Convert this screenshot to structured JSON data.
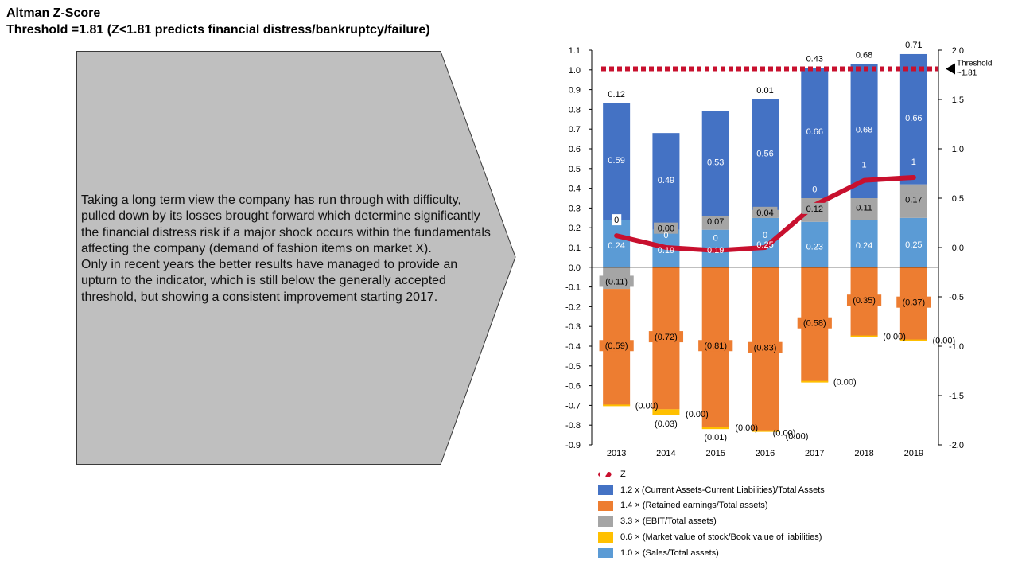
{
  "header": {
    "title": "Altman Z-Score",
    "subtitle": "Threshold =1.81 (Z<1.81 predicts financial distress/bankruptcy/failure)"
  },
  "commentary": {
    "paragraph1": "Taking a long term view the company has run through with difficulty, pulled down by its losses brought forward which determine significantly the financial distress risk if a major shock occurs within the fundamentals affecting the company (demand of fashion items on market X).",
    "paragraph2": "Only in recent years the better results have managed to provide an upturn to the indicator, which is still below the generally accepted threshold, but showing a consistent improvement starting 2017."
  },
  "colors": {
    "blue": "#4472c4",
    "orange": "#ed7d31",
    "gray": "#a5a5a5",
    "yellow": "#ffc000",
    "lightblue": "#5b9bd5",
    "z_line": "#c8102e",
    "arrow_fill": "#bfbfbf"
  },
  "chart_data": {
    "type": "bar",
    "stacked": true,
    "categories": [
      "2013",
      "2014",
      "2015",
      "2016",
      "2017",
      "2018",
      "2019"
    ],
    "left_axis": {
      "min": -0.9,
      "max": 1.1,
      "step": 0.1,
      "ticks": [
        "1.1",
        "1.0",
        "0.9",
        "0.8",
        "0.7",
        "0.6",
        "0.5",
        "0.4",
        "0.3",
        "0.2",
        "0.1",
        "0.0",
        "-0.1",
        "-0.2",
        "-0.3",
        "-0.4",
        "-0.5",
        "-0.6",
        "-0.7",
        "-0.8",
        "-0.9"
      ]
    },
    "right_axis": {
      "min": -2.0,
      "max": 2.0,
      "step": 0.5,
      "ticks": [
        "2.0",
        "1.5",
        "1.0",
        "0.5",
        "0.0",
        "-0.5",
        "-1.0",
        "-1.5",
        "-2.0"
      ]
    },
    "threshold": {
      "value": 1.81,
      "label_line1": "Threshold",
      "label_line2": "~1.81"
    },
    "series": [
      {
        "name": "1.0 × (Sales/Total assets)",
        "color_key": "lightblue",
        "values": [
          0.24,
          0.19,
          0.19,
          0.25,
          0.23,
          0.24,
          0.25
        ],
        "labels": [
          "0.24",
          "0.19",
          "0.19",
          "0.25",
          "0.23",
          "0.24",
          "0.25"
        ]
      },
      {
        "name": "3.3 × (EBIT/Total assets)",
        "color_key": "gray",
        "values": [
          -0.11,
          0.0,
          0.07,
          0.04,
          0.12,
          0.11,
          0.17
        ],
        "labels": [
          "(0.11)",
          "0.00",
          "0.07",
          "0.04",
          "0.12",
          "0.11",
          "0.17"
        ]
      },
      {
        "name": "1.2 x (Current Assets-Current Liabilities)/Total Assets",
        "color_key": "blue",
        "values": [
          0.59,
          0.49,
          0.53,
          0.56,
          0.66,
          0.68,
          0.66
        ],
        "labels": [
          "0.59",
          "0.49",
          "0.53",
          "0.56",
          "0.66",
          "0.68",
          "0.66"
        ]
      },
      {
        "name": "1.4 × (Retained earnings/Total assets)",
        "color_key": "orange",
        "values": [
          -0.59,
          -0.72,
          -0.81,
          -0.83,
          -0.58,
          -0.35,
          -0.37
        ],
        "labels": [
          "(0.59)",
          "(0.72)",
          "(0.81)",
          "(0.83)",
          "(0.58)",
          "(0.35)",
          "(0.37)"
        ]
      },
      {
        "name": "0.6 × (Market value of stock/Book value of liabilities)",
        "color_key": "yellow",
        "values": [
          0.0,
          -0.03,
          -0.01,
          0.0,
          0.0,
          0.0,
          0.0
        ],
        "labels": [
          "(0.00)",
          "(0.03)",
          "(0.01)",
          "(0.00)",
          "(0.00)",
          "(0.00)",
          "(0.00)"
        ]
      }
    ],
    "extra_labels": {
      "top": [
        "0.12",
        "",
        "",
        "0.01",
        "0.43",
        "0.68",
        "0.71"
      ],
      "neg_extra": [
        "",
        "(0.00)",
        "(0.00)",
        "(0.00)",
        "",
        "",
        ""
      ]
    },
    "z_line": {
      "name": "Z",
      "axis": "right",
      "values": [
        0.12,
        0.0,
        -0.03,
        0.0,
        0.43,
        0.68,
        0.71
      ],
      "labels": [
        "0",
        "0",
        "0",
        "0",
        "0",
        "1",
        "1"
      ]
    },
    "legend": [
      {
        "label": "Z",
        "kind": "line",
        "color_key": "z_line"
      },
      {
        "label": "1.2 x (Current Assets-Current Liabilities)/Total Assets",
        "kind": "box",
        "color_key": "blue"
      },
      {
        "label": "1.4 × (Retained earnings/Total assets)",
        "kind": "box",
        "color_key": "orange"
      },
      {
        "label": "3.3 × (EBIT/Total assets)",
        "kind": "box",
        "color_key": "gray"
      },
      {
        "label": "0.6 × (Market value of stock/Book value of liabilities)",
        "kind": "box",
        "color_key": "yellow"
      },
      {
        "label": "1.0 × (Sales/Total assets)",
        "kind": "box",
        "color_key": "lightblue"
      }
    ]
  }
}
